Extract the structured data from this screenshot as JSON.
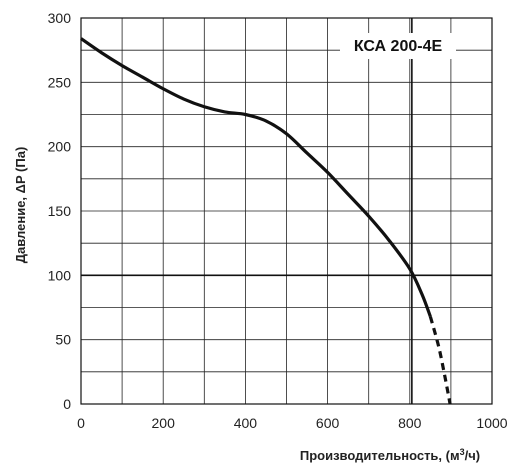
{
  "chart_data": {
    "type": "line",
    "title": "",
    "annotation": "КСА 200-4Е",
    "xlabel": "Производительность, (м³/ч)",
    "xlabel_parts": {
      "pre": "Производительность, (м",
      "sup": "3",
      "post": "/ч)"
    },
    "ylabel": "Давление, ΔP (Па)",
    "xlim": [
      0,
      1000
    ],
    "ylim": [
      0,
      300
    ],
    "x_ticks": [
      0,
      200,
      400,
      600,
      800,
      1000
    ],
    "y_ticks": [
      0,
      50,
      100,
      150,
      200,
      250,
      300
    ],
    "grid": true,
    "grid_x_step": 100,
    "grid_y_step": 25,
    "reference_lines": {
      "x": 805,
      "y": 100
    },
    "series": [
      {
        "style": "solid",
        "x": [
          0,
          50,
          100,
          150,
          200,
          250,
          300,
          350,
          400,
          450,
          500,
          550,
          600,
          650,
          700,
          750,
          800,
          830,
          850
        ],
        "y": [
          284,
          273,
          263,
          254,
          245,
          237,
          231,
          227,
          225,
          220,
          210,
          195,
          180,
          163,
          146,
          127,
          105,
          85,
          68
        ]
      },
      {
        "style": "dashed",
        "x": [
          850,
          870,
          885,
          898
        ],
        "y": [
          68,
          45,
          22,
          0
        ]
      }
    ]
  }
}
